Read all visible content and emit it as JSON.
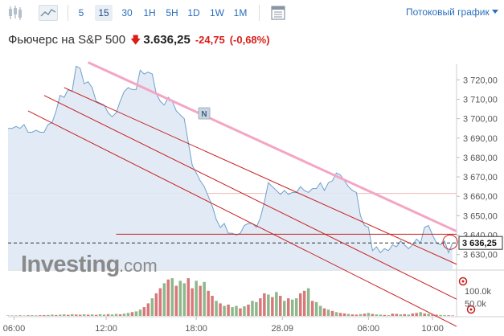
{
  "toolbar": {
    "intervals": [
      "5",
      "15",
      "30",
      "1H",
      "5H",
      "1D",
      "1W",
      "1M"
    ],
    "active_interval": "15",
    "stream_label": "Потоковый график",
    "icons": [
      "candlestick-chart-icon",
      "area-chart-icon",
      "data-table-icon"
    ]
  },
  "header": {
    "title": "Фьючерс на S&P 500",
    "price": "3.636,25",
    "change": "-24,75",
    "change_pct": "(-0,68%)",
    "direction": "down"
  },
  "colors": {
    "accent": "#2a6ebb",
    "negative": "#d91e18",
    "area_fill": "#dde8f3",
    "area_line": "#6f9fcc",
    "trend_pink": "#f3a6c4",
    "channel_red": "#c81e1e",
    "volume_green": "#8db88b",
    "volume_red": "#d9787a"
  },
  "watermark": "Investing.com",
  "news_marker": "N",
  "price_label": "3 636,25",
  "chart_data": {
    "type": "area",
    "title": "",
    "xlabel": "",
    "ylabel": "",
    "x_ticks": [
      "06:00",
      "12:00",
      "18:00",
      "28.09",
      "06:00",
      "10:00"
    ],
    "y_ticks": [
      "3 720,00",
      "3 710,00",
      "3 700,00",
      "3 690,00",
      "3 680,00",
      "3 670,00",
      "3 660,00",
      "3 650,00",
      "3 640,00",
      "3 630,00"
    ],
    "ylim": [
      3622,
      3728
    ],
    "x_range": [
      0,
      112
    ],
    "series": [
      {
        "values": [
          3695,
          3695,
          3696,
          3695,
          3697,
          3693,
          3693,
          3694,
          3693,
          3693,
          3697,
          3698,
          3704,
          3712,
          3711,
          3715,
          3714,
          3727,
          3726,
          3718,
          3719,
          3716,
          3709,
          3708,
          3707,
          3703,
          3701,
          3703,
          3709,
          3714,
          3716,
          3715,
          3715,
          3725,
          3723,
          3724,
          3723,
          3713,
          3709,
          3707,
          3711,
          3709,
          3704,
          3702,
          3700,
          3688,
          3676,
          3672,
          3668,
          3665,
          3660,
          3655,
          3648,
          3644,
          3646,
          3641,
          3641,
          3640,
          3641,
          3645,
          3646,
          3646,
          3644,
          3649,
          3657,
          3667,
          3665,
          3663,
          3661,
          3663,
          3661,
          3662,
          3662,
          3665,
          3663,
          3662,
          3664,
          3664,
          3667,
          3663,
          3667,
          3668,
          3672,
          3671,
          3668,
          3665,
          3663,
          3662,
          3650,
          3645,
          3644,
          3632,
          3634,
          3631,
          3633,
          3632,
          3635,
          3634,
          3637,
          3635,
          3633,
          3635,
          3638,
          3636,
          3644,
          3645,
          3640,
          3636,
          3635,
          3637,
          3631,
          3636
        ]
      }
    ],
    "volume": {
      "y_ticks": [
        "100.0k",
        "50.0k"
      ],
      "ylim": [
        0,
        160000
      ],
      "values": [
        2000,
        1500,
        1800,
        2200,
        1600,
        2500,
        3000,
        2400,
        2800,
        3200,
        4000,
        5000,
        3500,
        5200,
        6000,
        4500,
        7000,
        5500,
        4800,
        6200,
        5000,
        5800,
        4200,
        6600,
        5100,
        7200,
        5900,
        8000,
        6500,
        9000,
        12000,
        15000,
        18000,
        25000,
        35000,
        50000,
        70000,
        90000,
        110000,
        130000,
        145000,
        150000,
        120000,
        140000,
        130000,
        150000,
        110000,
        140000,
        120000,
        135000,
        100000,
        80000,
        60000,
        50000,
        40000,
        45000,
        35000,
        40000,
        30000,
        38000,
        45000,
        60000,
        55000,
        70000,
        90000,
        85000,
        75000,
        95000,
        80000,
        60000,
        70000,
        65000,
        70000,
        90000,
        100000,
        110000,
        60000,
        55000,
        40000,
        30000,
        25000,
        20000,
        15000,
        12000,
        10000,
        8000,
        6000,
        5000,
        7000,
        9000,
        12000,
        8000,
        6000,
        5000,
        4000,
        3000,
        9000,
        8000,
        6000,
        7000,
        5000,
        10000,
        12000,
        15000,
        10000,
        8000,
        6000,
        5000,
        4000,
        3000,
        2500,
        2000
      ],
      "up": [
        1,
        0,
        1,
        0,
        1,
        0,
        1,
        1,
        0,
        0,
        1,
        1,
        0,
        1,
        1,
        0,
        1,
        0,
        0,
        1,
        0,
        1,
        0,
        1,
        1,
        0,
        1,
        1,
        0,
        1,
        1,
        0,
        1,
        1,
        0,
        0,
        1,
        0,
        0,
        1,
        0,
        1,
        0,
        1,
        1,
        0,
        0,
        1,
        0,
        1,
        0,
        0,
        1,
        0,
        1,
        0,
        1,
        1,
        0,
        1,
        0,
        1,
        1,
        0,
        0,
        1,
        0,
        1,
        0,
        1,
        0,
        1,
        1,
        0,
        0,
        1,
        0,
        1,
        1,
        0,
        1,
        0,
        1,
        0,
        0,
        1,
        0,
        0,
        1,
        0,
        1,
        0,
        1,
        1,
        0,
        1,
        0,
        0,
        1,
        0,
        1,
        0,
        0,
        1,
        0,
        1,
        0,
        0,
        1,
        1,
        0,
        0
      ]
    },
    "grid": false,
    "legend": "none"
  }
}
